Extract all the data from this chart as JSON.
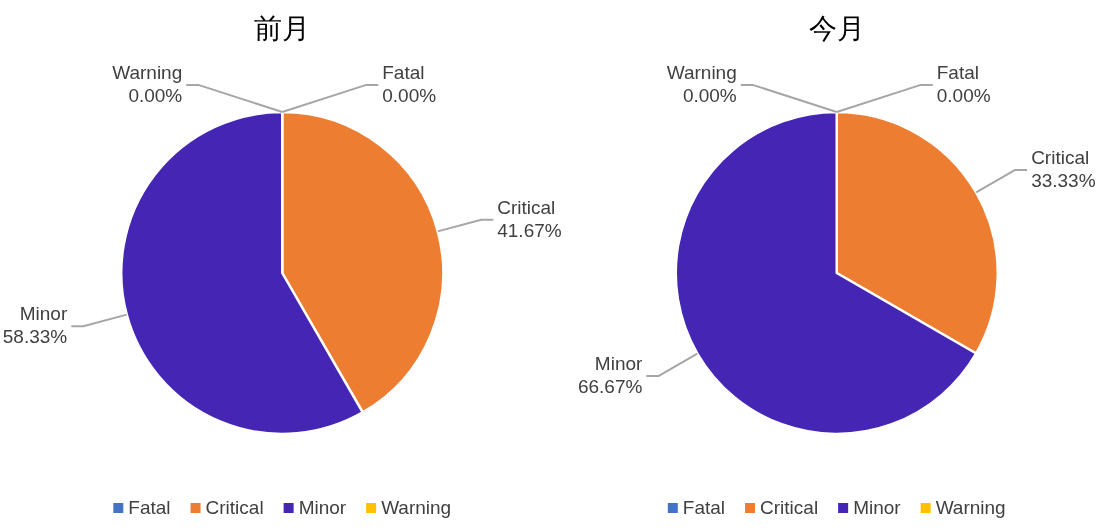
{
  "chart_data": [
    {
      "type": "pie",
      "title": "前月",
      "categories": [
        "Fatal",
        "Critical",
        "Minor",
        "Warning"
      ],
      "values": [
        0,
        41.67,
        58.33,
        0
      ],
      "value_labels": [
        "0.00%",
        "41.67%",
        "58.33%",
        "0.00%"
      ],
      "colors": [
        "#4472c4",
        "#ed7d31",
        "#4425b4",
        "#ffc000"
      ],
      "legend": "bottom"
    },
    {
      "type": "pie",
      "title": "今月",
      "categories": [
        "Fatal",
        "Critical",
        "Minor",
        "Warning"
      ],
      "values": [
        0,
        33.33,
        66.67,
        0
      ],
      "value_labels": [
        "0.00%",
        "33.33%",
        "66.67%",
        "0.00%"
      ],
      "colors": [
        "#4472c4",
        "#ed7d31",
        "#4425b4",
        "#ffc000"
      ],
      "legend": "bottom"
    }
  ]
}
